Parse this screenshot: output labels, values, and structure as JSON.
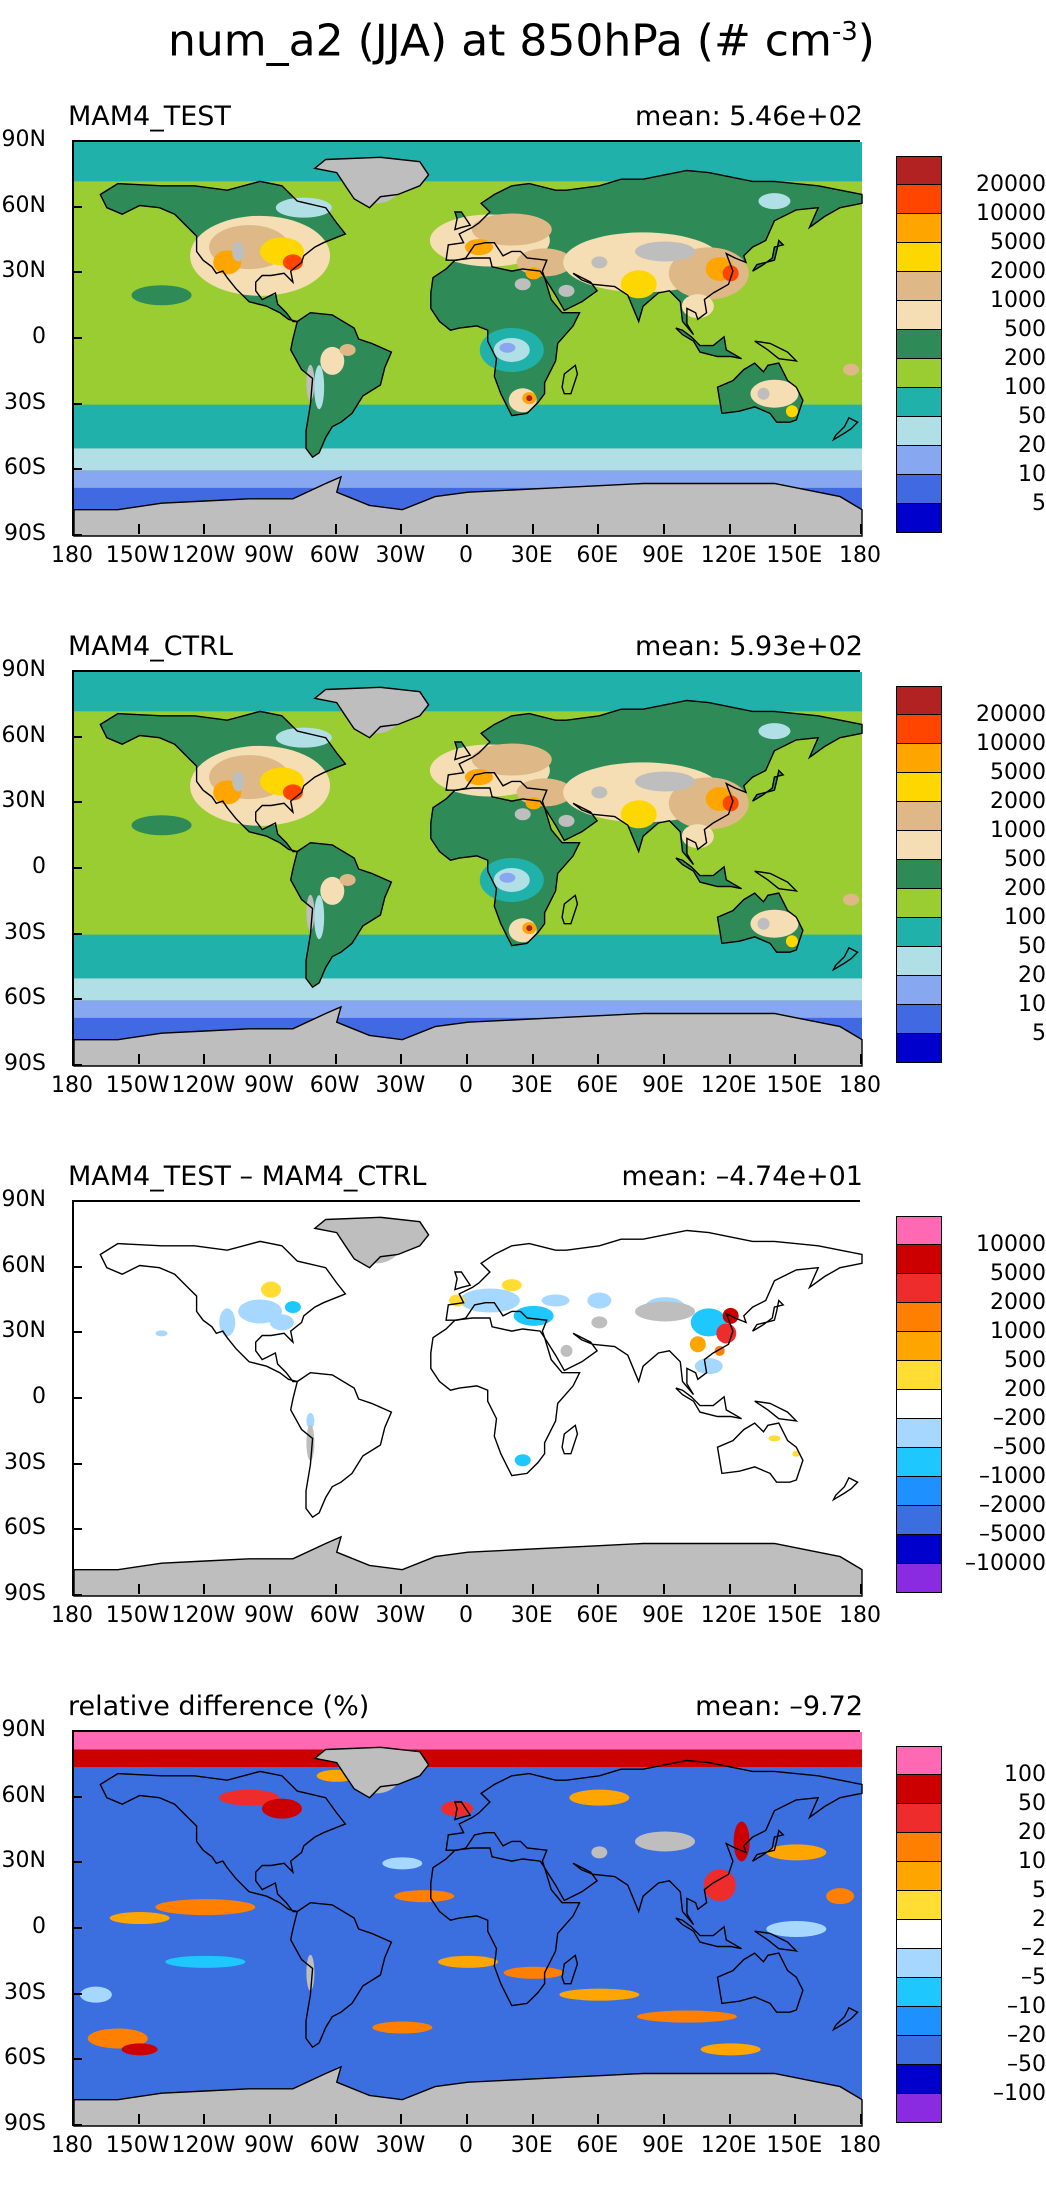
{
  "title": {
    "main": "num_a2 (JJA) at 850hPa (# cm",
    "exponent": "-3",
    "close": ")"
  },
  "axes": {
    "lat_ticks": [
      "90N",
      "60N",
      "30N",
      "0",
      "30S",
      "60S",
      "90S"
    ],
    "lon_ticks": [
      "180",
      "150W",
      "120W",
      "90W",
      "60W",
      "30W",
      "0",
      "30E",
      "60E",
      "90E",
      "120E",
      "150E",
      "180"
    ]
  },
  "panels": [
    {
      "name": "MAM4_TEST",
      "label": "MAM4_TEST",
      "mean": "mean: 5.46e+02",
      "colorbar": {
        "labels": [
          "20000",
          "10000",
          "5000",
          "2000",
          "1000",
          "500",
          "200",
          "100",
          "50",
          "20",
          "10",
          "5"
        ],
        "colors": [
          "#b22222",
          "#ff4500",
          "#ffa500",
          "#ffd700",
          "#deb887",
          "#f5deb3",
          "#2e8b57",
          "#9acd32",
          "#20b2aa",
          "#b0e0e6",
          "#87a8f0",
          "#4169e1",
          "#0000cd"
        ]
      }
    },
    {
      "name": "MAM4_CTRL",
      "label": "MAM4_CTRL",
      "mean": "mean: 5.93e+02",
      "colorbar": {
        "labels": [
          "20000",
          "10000",
          "5000",
          "2000",
          "1000",
          "500",
          "200",
          "100",
          "50",
          "20",
          "10",
          "5"
        ],
        "colors": [
          "#b22222",
          "#ff4500",
          "#ffa500",
          "#ffd700",
          "#deb887",
          "#f5deb3",
          "#2e8b57",
          "#9acd32",
          "#20b2aa",
          "#b0e0e6",
          "#87a8f0",
          "#4169e1",
          "#0000cd"
        ]
      }
    },
    {
      "name": "difference",
      "label": "MAM4_TEST – MAM4_CTRL",
      "mean": "mean: –4.74e+01",
      "colorbar": {
        "labels": [
          "10000",
          "5000",
          "2000",
          "1000",
          "500",
          "200",
          "–200",
          "–500",
          "–1000",
          "–2000",
          "–5000",
          "–10000"
        ],
        "colors": [
          "#ff69b4",
          "#cc0000",
          "#ee2c2c",
          "#ff7f00",
          "#ffa500",
          "#ffdd33",
          "#ffffff",
          "#a6d8ff",
          "#1ec8ff",
          "#1e90ff",
          "#3b6fe0",
          "#0000cd",
          "#8a2be2"
        ]
      }
    },
    {
      "name": "relative-difference",
      "label": "relative difference (%)",
      "mean": "mean: –9.72",
      "colorbar": {
        "labels": [
          "100",
          "50",
          "20",
          "10",
          "5",
          "2",
          "–2",
          "–5",
          "–10",
          "–20",
          "–50",
          "–100"
        ],
        "colors": [
          "#ff69b4",
          "#cc0000",
          "#ee2c2c",
          "#ff7f00",
          "#ffa500",
          "#ffdd33",
          "#ffffff",
          "#a6d8ff",
          "#1ec8ff",
          "#1e90ff",
          "#3b6fe0",
          "#0000cd",
          "#8a2be2"
        ]
      }
    }
  ]
}
